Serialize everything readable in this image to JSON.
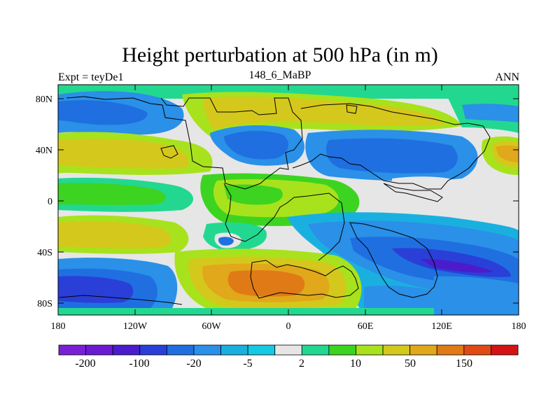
{
  "title": "Height perturbation at 500 hPa (in m)",
  "subtitle_left": "Expt = teyDe1",
  "subtitle_center": "148_6_MaBP",
  "subtitle_right": "ANN",
  "y_axis_labels": [
    "80N",
    "40N",
    "0",
    "40S",
    "80S"
  ],
  "x_axis_labels": [
    "180",
    "120W",
    "60W",
    "0",
    "60E",
    "120E",
    "180"
  ],
  "colorbar": {
    "labels": [
      "-200",
      "-100",
      "-20",
      "-5",
      "2",
      "10",
      "50",
      "150"
    ],
    "colors": [
      "#7a1fd6",
      "#6a1ad0",
      "#4a1ccc",
      "#2a3fd8",
      "#1f6fe0",
      "#2a90e8",
      "#19b0e0",
      "#15c8e4",
      "#e6e6e6",
      "#22d890",
      "#3cd420",
      "#a8e21c",
      "#d4c81c",
      "#e0a81a",
      "#e07a16",
      "#e04a14",
      "#d41414"
    ]
  },
  "colors": {
    "ocean_white": "#e6e6e6",
    "deep_blue": "#2a3fd8",
    "blue": "#1f6fe0",
    "light_blue": "#2a90e8",
    "cyan": "#15c8e4",
    "green_teal": "#22d890",
    "green": "#3cd420",
    "lime": "#a8e21c",
    "olive": "#d4c81c",
    "orange_light": "#e0a81a",
    "orange": "#e07a16",
    "purple": "#4a1ccc"
  }
}
